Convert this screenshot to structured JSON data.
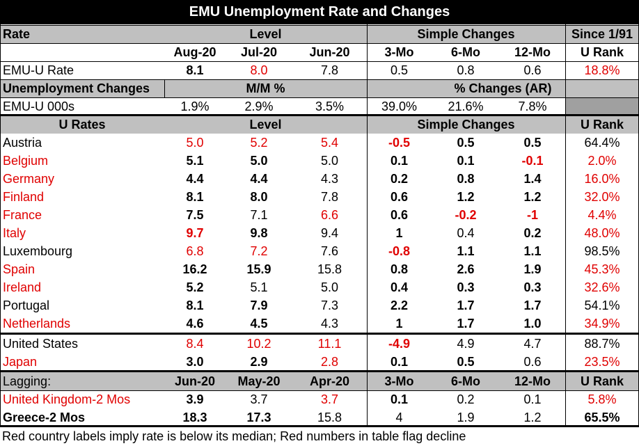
{
  "title": "EMU Unemployment Rate and Changes",
  "header1": {
    "rate": "Rate",
    "level": "Level",
    "simple_changes": "Simple Changes",
    "since": "Since 1/91"
  },
  "header2": [
    "Aug-20",
    "Jul-20",
    "Jun-20",
    "3-Mo",
    "6-Mo",
    "12-Mo",
    "U Rank"
  ],
  "emu_rate": {
    "label": "EMU-U Rate",
    "values": [
      "8.1",
      "8.0",
      "7.8",
      "0.5",
      "0.8",
      "0.6",
      "18.8%"
    ]
  },
  "unemp_changes_header": {
    "label": "Unemployment Changes",
    "mm": "M/M %",
    "ar": "% Changes (AR)"
  },
  "emu_000s": {
    "label": "EMU-U 000s",
    "values": [
      "1.9%",
      "2.9%",
      "3.5%",
      "39.0%",
      "21.6%",
      "7.8%"
    ]
  },
  "u_rates_header": {
    "label": "U Rates",
    "level": "Level",
    "simple_changes": "Simple Changes",
    "rank": "U Rank"
  },
  "countries": [
    {
      "name": "Austria",
      "values": [
        "5.0",
        "5.2",
        "5.4",
        "-0.5",
        "0.5",
        "0.5",
        "64.4%"
      ]
    },
    {
      "name": "Belgium",
      "values": [
        "5.1",
        "5.0",
        "5.0",
        "0.1",
        "0.1",
        "-0.1",
        "2.0%"
      ]
    },
    {
      "name": "Germany",
      "values": [
        "4.4",
        "4.4",
        "4.3",
        "0.2",
        "0.8",
        "1.4",
        "16.0%"
      ]
    },
    {
      "name": "Finland",
      "values": [
        "8.1",
        "8.0",
        "7.8",
        "0.6",
        "1.2",
        "1.2",
        "32.0%"
      ]
    },
    {
      "name": "France",
      "values": [
        "7.5",
        "7.1",
        "6.6",
        "0.6",
        "-0.2",
        "-1",
        "4.4%"
      ]
    },
    {
      "name": "Italy",
      "values": [
        "9.7",
        "9.8",
        "9.4",
        "1",
        "0.4",
        "0.2",
        "48.0%"
      ]
    },
    {
      "name": "Luxembourg",
      "values": [
        "6.8",
        "7.2",
        "7.6",
        "-0.8",
        "1.1",
        "1.1",
        "98.5%"
      ]
    },
    {
      "name": "Spain",
      "values": [
        "16.2",
        "15.9",
        "15.8",
        "0.8",
        "2.6",
        "1.9",
        "45.3%"
      ]
    },
    {
      "name": "Ireland",
      "values": [
        "5.2",
        "5.1",
        "5.0",
        "0.4",
        "0.3",
        "0.3",
        "32.6%"
      ]
    },
    {
      "name": "Portugal",
      "values": [
        "8.1",
        "7.9",
        "7.3",
        "2.2",
        "1.7",
        "1.7",
        "54.1%"
      ]
    },
    {
      "name": "Netherlands",
      "values": [
        "4.6",
        "4.5",
        "4.3",
        "1",
        "1.7",
        "1.0",
        "34.9%"
      ]
    }
  ],
  "others": [
    {
      "name": "United States",
      "values": [
        "8.4",
        "10.2",
        "11.1",
        "-4.9",
        "4.9",
        "4.7",
        "88.7%"
      ]
    },
    {
      "name": "Japan",
      "values": [
        "3.0",
        "2.9",
        "2.8",
        "0.1",
        "0.5",
        "0.6",
        "23.5%"
      ]
    }
  ],
  "lagging_header": {
    "label": "Lagging:",
    "cols": [
      "Jun-20",
      "May-20",
      "Apr-20",
      "3-Mo",
      "6-Mo",
      "12-Mo",
      "U Rank"
    ]
  },
  "lagging": [
    {
      "name": "United Kingdom-2 Mos",
      "values": [
        "3.9",
        "3.7",
        "3.7",
        "0.1",
        "0.2",
        "0.1",
        "5.8%"
      ]
    },
    {
      "name": "Greece-2 Mos",
      "values": [
        "18.3",
        "17.3",
        "15.8",
        "4",
        "1.9",
        "1.2",
        "65.5%"
      ]
    }
  ],
  "footnote": "Red country labels imply rate is below its median; Red numbers in table flag decline",
  "colors": {
    "red": "#e00000",
    "dark_red": "#c00000",
    "header_gray": "#c0c0c0",
    "title_bg": "#000000"
  }
}
